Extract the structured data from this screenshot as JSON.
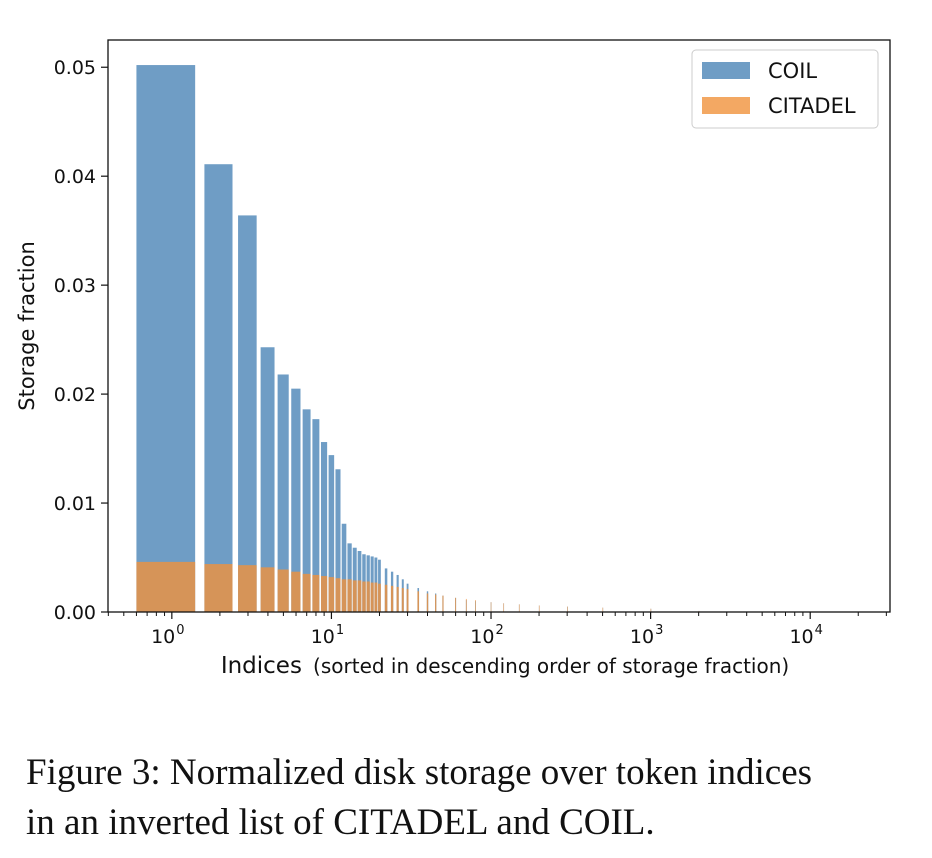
{
  "chart_data": {
    "type": "bar",
    "xscale": "log",
    "title": "",
    "ylabel": "Storage fraction",
    "xlabel_main": "Indices",
    "xlabel_note": "(sorted in descending order of storage fraction)",
    "ylim": [
      0,
      0.0525
    ],
    "xlim_log10": [
      -0.4,
      4.5
    ],
    "yticks": [
      {
        "value": 0.0,
        "label": "0.00"
      },
      {
        "value": 0.01,
        "label": "0.01"
      },
      {
        "value": 0.02,
        "label": "0.02"
      },
      {
        "value": 0.03,
        "label": "0.03"
      },
      {
        "value": 0.04,
        "label": "0.04"
      },
      {
        "value": 0.05,
        "label": "0.05"
      }
    ],
    "xticks": [
      {
        "exp": 0,
        "base": "10",
        "sup": "0"
      },
      {
        "exp": 1,
        "base": "10",
        "sup": "1"
      },
      {
        "exp": 2,
        "base": "10",
        "sup": "2"
      },
      {
        "exp": 3,
        "base": "10",
        "sup": "3"
      },
      {
        "exp": 4,
        "base": "10",
        "sup": "4"
      }
    ],
    "legend": {
      "position": "top-right",
      "entries": [
        "COIL",
        "CITADEL"
      ]
    },
    "series": [
      {
        "name": "COIL",
        "color": "#4b84b6",
        "opacity": 0.8,
        "x": [
          1,
          2,
          3,
          4,
          5,
          6,
          7,
          8,
          9,
          10,
          11,
          12,
          13,
          14,
          15,
          16,
          17,
          18,
          19,
          20,
          22,
          24,
          26,
          28,
          30,
          35,
          40,
          45,
          50,
          60,
          70,
          80,
          100,
          120,
          150,
          200,
          300,
          500,
          1000,
          2000
        ],
        "values": [
          0.0502,
          0.0411,
          0.0364,
          0.0243,
          0.0218,
          0.0205,
          0.0186,
          0.0177,
          0.0156,
          0.0144,
          0.0131,
          0.0081,
          0.0063,
          0.0059,
          0.0056,
          0.0053,
          0.0052,
          0.0051,
          0.005,
          0.0048,
          0.004,
          0.0037,
          0.0034,
          0.003,
          0.0026,
          0.0022,
          0.0019,
          0.0017,
          0.0015,
          0.0013,
          0.0011,
          0.001,
          0.0009,
          0.0008,
          0.0007,
          0.0006,
          0.0005,
          0.0004,
          0.0003,
          0.0001
        ]
      },
      {
        "name": "CITADEL",
        "color": "#f0923c",
        "opacity": 0.8,
        "x": [
          1,
          2,
          3,
          4,
          5,
          6,
          7,
          8,
          9,
          10,
          11,
          12,
          13,
          14,
          15,
          16,
          17,
          18,
          19,
          20,
          22,
          24,
          26,
          28,
          30,
          35,
          40,
          45,
          50,
          60,
          70,
          80,
          100,
          120,
          150,
          200,
          300,
          500,
          1000,
          2000
        ],
        "values": [
          0.0046,
          0.0044,
          0.0043,
          0.0041,
          0.0039,
          0.0037,
          0.0035,
          0.0034,
          0.0033,
          0.0032,
          0.0031,
          0.003,
          0.003,
          0.0029,
          0.0029,
          0.0028,
          0.0028,
          0.0027,
          0.0027,
          0.0026,
          0.0025,
          0.0024,
          0.0023,
          0.0022,
          0.0021,
          0.0019,
          0.0017,
          0.0016,
          0.0015,
          0.0013,
          0.0012,
          0.0011,
          0.0009,
          0.0008,
          0.0007,
          0.0006,
          0.0005,
          0.0004,
          0.0003,
          0.0001
        ]
      }
    ]
  },
  "caption": {
    "line1": "Figure 3: Normalized disk storage over token indices",
    "line2": "in an inverted list of CITADEL and COIL."
  }
}
